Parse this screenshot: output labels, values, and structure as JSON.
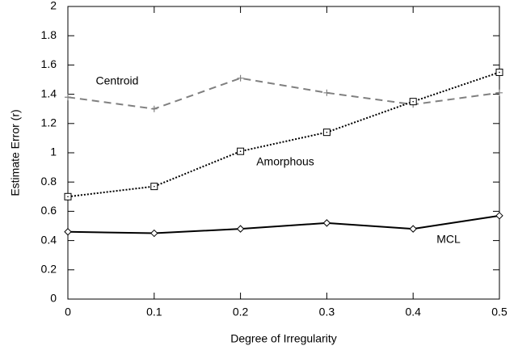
{
  "chart_data": {
    "type": "line",
    "xlabel": "Degree of Irregularity",
    "ylabel": "Estimate Error (r)",
    "x": [
      0,
      0.1,
      0.2,
      0.3,
      0.4,
      0.5
    ],
    "series": [
      {
        "name": "Centroid",
        "color": "#808080",
        "dash": "dashed",
        "marker": "plus",
        "values": [
          1.38,
          1.3,
          1.51,
          1.41,
          1.33,
          1.41
        ]
      },
      {
        "name": "Amorphous",
        "color": "#000000",
        "dash": "dotted",
        "marker": "square",
        "values": [
          0.7,
          0.77,
          1.01,
          1.14,
          1.35,
          1.55
        ]
      },
      {
        "name": "MCL",
        "color": "#000000",
        "dash": "solid",
        "marker": "diamond",
        "values": [
          0.46,
          0.45,
          0.48,
          0.52,
          0.48,
          0.57
        ]
      }
    ],
    "xlim": [
      0,
      0.5
    ],
    "xticks": [
      0,
      0.1,
      0.2,
      0.3,
      0.4,
      0.5
    ],
    "ylim": [
      0,
      2
    ],
    "yticks": [
      0,
      0.2,
      0.4,
      0.6,
      0.8,
      1,
      1.2,
      1.4,
      1.6,
      1.8,
      2
    ]
  }
}
